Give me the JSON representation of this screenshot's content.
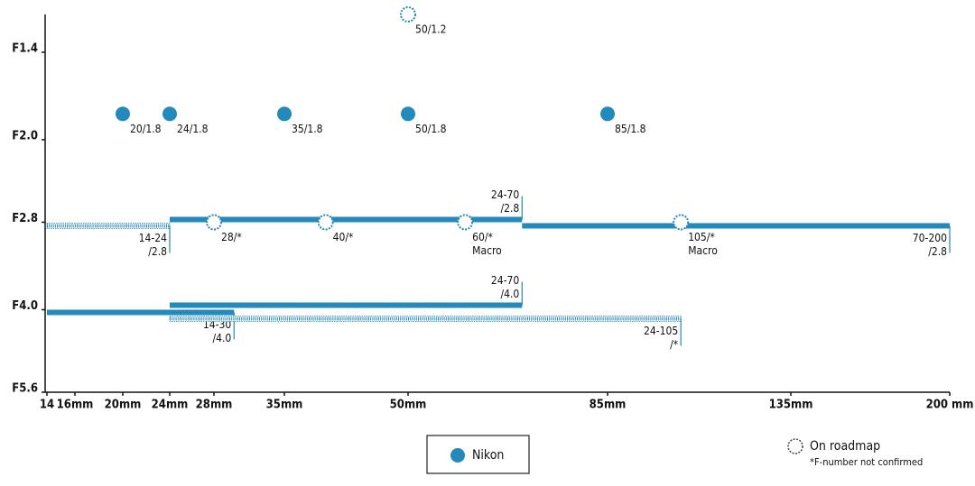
{
  "chart_data": {
    "type": "scatter",
    "yscale": "log",
    "xlim": [
      14,
      200
    ],
    "ylim": [
      1.2,
      5.6
    ],
    "xticks": [
      14,
      {
        "value": 16,
        "label": "16mm"
      },
      {
        "value": 20,
        "label": "20mm"
      },
      {
        "value": 24,
        "label": "24mm"
      },
      {
        "value": 28,
        "label": "28mm"
      },
      {
        "value": 35,
        "label": "35mm"
      },
      {
        "value": 50,
        "label": "50mm"
      },
      {
        "value": 85,
        "label": "85mm"
      },
      {
        "value": 135,
        "label": "135mm"
      },
      {
        "value": 200,
        "label": "200 mm"
      }
    ],
    "yticks": [
      {
        "value": 1.4,
        "label": "F1.4"
      },
      {
        "value": 2.0,
        "label": "F2.0"
      },
      {
        "value": 2.8,
        "label": "F2.8"
      },
      {
        "value": 4.0,
        "label": "F4.0"
      },
      {
        "value": 5.6,
        "label": "F5.6"
      }
    ],
    "series": [
      {
        "name": "Nikon",
        "color": "#2489bb",
        "style": "solid",
        "points": [
          {
            "x": 20,
            "y": 1.8,
            "label": [
              "20/1.8"
            ]
          },
          {
            "x": 24,
            "y": 1.8,
            "label": [
              "24/1.8"
            ]
          },
          {
            "x": 35,
            "y": 1.8,
            "label": [
              "35/1.8"
            ]
          },
          {
            "x": 50,
            "y": 1.8,
            "label": [
              "50/1.8"
            ]
          },
          {
            "x": 85,
            "y": 1.8,
            "label": [
              "85/1.8"
            ]
          }
        ],
        "ranges": [
          {
            "x": [
              24,
              70
            ],
            "y": 2.8,
            "label": [
              "24-70",
              "/2.8"
            ]
          },
          {
            "x": [
              70,
              200
            ],
            "y": 2.8,
            "label": [
              "70-200",
              "/2.8"
            ]
          },
          {
            "x": [
              14,
              30
            ],
            "y": 4.0,
            "label": [
              "14-30",
              "/4.0"
            ]
          },
          {
            "x": [
              24,
              70
            ],
            "y": 4.0,
            "label": [
              "24-70",
              "/4.0"
            ]
          }
        ]
      },
      {
        "name": "On roadmap",
        "color": "#2489bb",
        "style": "dotted",
        "points": [
          {
            "x": 50,
            "y": 1.2,
            "label": [
              "50/1.2"
            ]
          },
          {
            "x": 28,
            "y": 2.8,
            "label": [
              "28/*"
            ]
          },
          {
            "x": 40,
            "y": 2.8,
            "label": [
              "40/*"
            ]
          },
          {
            "x": 60,
            "y": 2.8,
            "label": [
              "60/*",
              "Macro"
            ]
          },
          {
            "x": 105,
            "y": 2.8,
            "label": [
              "105/*",
              "Macro"
            ]
          }
        ],
        "ranges": [
          {
            "x": [
              14,
              24
            ],
            "y": 2.8,
            "label": [
              "14-24",
              "/2.8"
            ]
          },
          {
            "x": [
              24,
              105
            ],
            "y": 4.0,
            "label": [
              "24-105",
              "/*"
            ]
          }
        ]
      }
    ],
    "note": "*F-number not confirmed"
  }
}
